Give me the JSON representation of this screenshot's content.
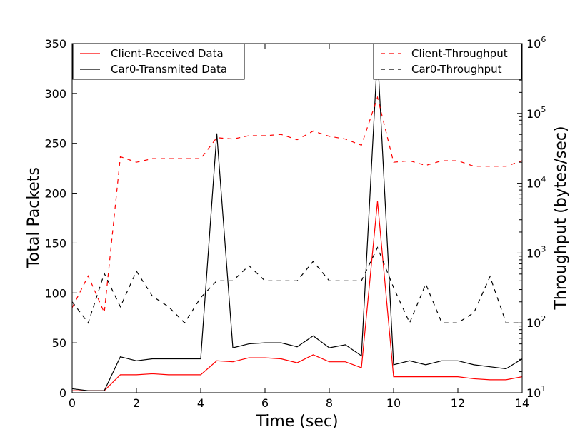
{
  "chart_data": {
    "type": "line",
    "title": "",
    "xlabel": "Time (sec)",
    "ylabel": "Total Packets",
    "y2label": "Throughput (bytes/sec)",
    "xlim": [
      0,
      14
    ],
    "ylim": [
      0,
      350
    ],
    "y2lim": [
      10,
      1000000
    ],
    "y2scale": "log",
    "grid": false,
    "x_ticks": [
      "0",
      "2",
      "4",
      "6",
      "8",
      "10",
      "12",
      "14"
    ],
    "y_ticks": [
      "0",
      "50",
      "100",
      "150",
      "200",
      "250",
      "300",
      "350"
    ],
    "y2_ticks": [
      {
        "base": "10",
        "exp": "1"
      },
      {
        "base": "10",
        "exp": "2"
      },
      {
        "base": "10",
        "exp": "3"
      },
      {
        "base": "10",
        "exp": "4"
      },
      {
        "base": "10",
        "exp": "5"
      },
      {
        "base": "10",
        "exp": "6"
      }
    ],
    "legend_left": {
      "placement": "top-left",
      "entries": [
        "Client-Received Data",
        "Car0-Transmited Data"
      ]
    },
    "legend_right": {
      "placement": "top-right",
      "entries": [
        "Client-Throughput",
        "Car0-Throughput"
      ]
    },
    "series": [
      {
        "name": "Client-Received Data",
        "axis": "left",
        "color": "#ff0000",
        "style": "solid",
        "x": [
          0,
          0.5,
          1,
          1.5,
          2,
          2.5,
          3,
          3.5,
          4,
          4.5,
          5,
          5.5,
          6,
          6.5,
          7,
          7.5,
          8,
          8.5,
          9,
          9.5,
          10,
          10.5,
          11,
          11.5,
          12,
          12.5,
          13,
          13.5,
          14
        ],
        "values": [
          2,
          2,
          2,
          18,
          18,
          19,
          18,
          18,
          18,
          32,
          31,
          35,
          35,
          34,
          30,
          38,
          31,
          31,
          25,
          192,
          16,
          16,
          16,
          16,
          16,
          14,
          13,
          13,
          16
        ]
      },
      {
        "name": "Car0-Transmited Data",
        "axis": "left",
        "color": "#000000",
        "style": "solid",
        "x": [
          0,
          0.5,
          1,
          1.5,
          2,
          2.5,
          3,
          3.5,
          4,
          4.5,
          5,
          5.5,
          6,
          6.5,
          7,
          7.5,
          8,
          8.5,
          9,
          9.5,
          10,
          10.5,
          11,
          11.5,
          12,
          12.5,
          13,
          13.5,
          14
        ],
        "values": [
          4,
          2,
          2,
          36,
          32,
          34,
          34,
          34,
          34,
          260,
          45,
          49,
          50,
          50,
          46,
          57,
          45,
          48,
          37,
          340,
          28,
          32,
          28,
          32,
          32,
          28,
          26,
          24,
          34
        ]
      },
      {
        "name": "Client-Throughput",
        "axis": "right",
        "color": "#ff0000",
        "style": "dashed",
        "x": [
          0,
          0.5,
          1,
          1.5,
          2,
          2.5,
          3,
          3.5,
          4,
          4.5,
          5,
          5.5,
          6,
          6.5,
          7,
          7.5,
          8,
          8.5,
          9,
          9.5,
          10,
          10.5,
          11,
          11.5,
          12,
          12.5,
          13,
          13.5,
          14
        ],
        "values": [
          165,
          470,
          140,
          24000,
          20000,
          22500,
          22500,
          22500,
          22500,
          45000,
          43000,
          48000,
          48000,
          50000,
          42000,
          56000,
          47000,
          43000,
          35000,
          170000,
          20000,
          21000,
          18000,
          21000,
          21000,
          17500,
          17500,
          17500,
          21000
        ]
      },
      {
        "name": "Car0-Throughput",
        "axis": "right",
        "color": "#000000",
        "style": "dashed",
        "x": [
          0,
          0.5,
          1,
          1.5,
          2,
          2.5,
          3,
          3.5,
          4,
          4.5,
          5,
          5.5,
          6,
          6.5,
          7,
          7.5,
          8,
          8.5,
          9,
          9.5,
          10,
          10.5,
          11,
          11.5,
          12,
          12.5,
          13,
          13.5,
          14
        ],
        "values": [
          200,
          100,
          510,
          170,
          550,
          240,
          170,
          100,
          230,
          400,
          400,
          660,
          400,
          400,
          400,
          760,
          400,
          400,
          400,
          1200,
          320,
          100,
          360,
          100,
          100,
          140,
          460,
          100,
          100
        ]
      }
    ]
  }
}
